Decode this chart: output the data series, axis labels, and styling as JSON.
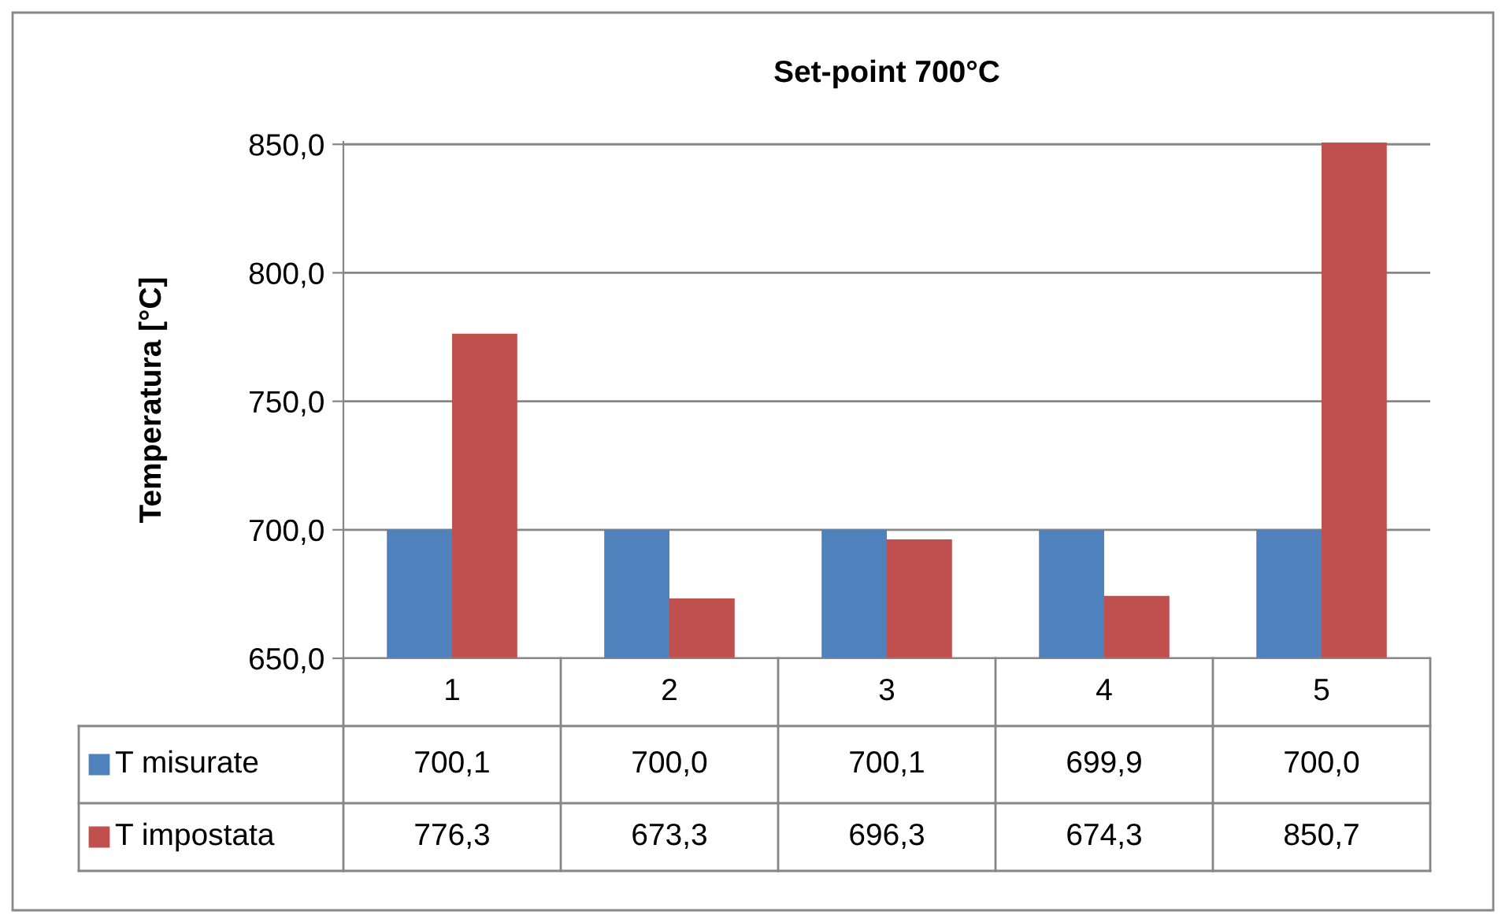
{
  "chart_data": {
    "type": "bar",
    "title": "Set-point 700°C",
    "ylabel": "Temperatura [°C]",
    "categories": [
      "1",
      "2",
      "3",
      "4",
      "5"
    ],
    "series": [
      {
        "name": "T misurate",
        "color": "#4f81bd",
        "values": [
          700.1,
          700.0,
          700.1,
          699.9,
          700.0
        ],
        "value_labels": [
          "700,1",
          "700,0",
          "700,1",
          "699,9",
          "700,0"
        ]
      },
      {
        "name": "T impostata",
        "color": "#c0504d",
        "values": [
          776.3,
          673.3,
          696.3,
          674.3,
          850.7
        ],
        "value_labels": [
          "776,3",
          "673,3",
          "696,3",
          "674,3",
          "850,7"
        ]
      }
    ],
    "ylim": [
      650,
      851
    ],
    "yticks": [
      {
        "value": 650,
        "label": "650,0"
      },
      {
        "value": 700,
        "label": "700,0"
      },
      {
        "value": 750,
        "label": "750,0"
      },
      {
        "value": 800,
        "label": "800,0"
      },
      {
        "value": 850,
        "label": "850,0"
      }
    ],
    "grid": "y",
    "legend": "bottom left"
  }
}
